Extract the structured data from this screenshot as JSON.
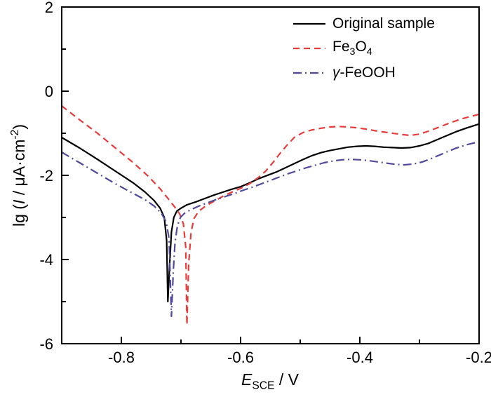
{
  "chart_data": {
    "type": "line",
    "title": "",
    "xlabel": "E_SCE / V",
    "ylabel": "lg (I / μA·cm⁻²)",
    "xlim": [
      -0.9,
      -0.2
    ],
    "ylim": [
      -6,
      2
    ],
    "x_ticks": [
      -0.8,
      -0.6,
      -0.4,
      -0.2
    ],
    "x_tick_labels": [
      "-0.8",
      "-0.6",
      "-0.4",
      "-0.2"
    ],
    "x_minor_ticks": [
      -0.9,
      -0.7,
      -0.5,
      -0.3
    ],
    "y_ticks": [
      -6,
      -4,
      -2,
      0,
      2
    ],
    "y_tick_labels": [
      "-6",
      "-4",
      "-2",
      "0",
      "2"
    ],
    "y_minor_ticks": [
      -5,
      -3,
      -1,
      1
    ],
    "grid": false,
    "legend_position": "top-right",
    "axis_color": "#000000",
    "series": [
      {
        "name": "Original sample",
        "color": "#000000",
        "dash": "solid",
        "stroke_width": 2.2,
        "x": [
          -0.9,
          -0.87,
          -0.84,
          -0.81,
          -0.78,
          -0.76,
          -0.745,
          -0.735,
          -0.728,
          -0.724,
          -0.722,
          -0.719,
          -0.716,
          -0.712,
          -0.707,
          -0.7,
          -0.69,
          -0.675,
          -0.66,
          -0.645,
          -0.63,
          -0.615,
          -0.6,
          -0.585,
          -0.57,
          -0.555,
          -0.54,
          -0.525,
          -0.51,
          -0.495,
          -0.48,
          -0.465,
          -0.45,
          -0.435,
          -0.42,
          -0.405,
          -0.39,
          -0.375,
          -0.36,
          -0.345,
          -0.33,
          -0.315,
          -0.3,
          -0.285,
          -0.27,
          -0.255,
          -0.24,
          -0.22,
          -0.2
        ],
        "y": [
          -1.1,
          -1.35,
          -1.62,
          -1.9,
          -2.18,
          -2.4,
          -2.6,
          -2.78,
          -3.0,
          -3.55,
          -5.0,
          -4.1,
          -3.35,
          -3.0,
          -2.85,
          -2.78,
          -2.7,
          -2.63,
          -2.55,
          -2.47,
          -2.4,
          -2.33,
          -2.27,
          -2.18,
          -2.08,
          -2.0,
          -1.92,
          -1.82,
          -1.72,
          -1.62,
          -1.53,
          -1.46,
          -1.41,
          -1.37,
          -1.33,
          -1.31,
          -1.3,
          -1.31,
          -1.33,
          -1.34,
          -1.35,
          -1.34,
          -1.3,
          -1.24,
          -1.15,
          -1.06,
          -0.97,
          -0.87,
          -0.78
        ]
      },
      {
        "name": "Fe₃O₄",
        "color": "#e83b3b",
        "dash": "dashed",
        "stroke_width": 2.2,
        "x": [
          -0.9,
          -0.87,
          -0.84,
          -0.81,
          -0.78,
          -0.755,
          -0.735,
          -0.72,
          -0.71,
          -0.702,
          -0.696,
          -0.692,
          -0.69,
          -0.687,
          -0.683,
          -0.678,
          -0.67,
          -0.658,
          -0.645,
          -0.63,
          -0.615,
          -0.6,
          -0.585,
          -0.57,
          -0.558,
          -0.546,
          -0.534,
          -0.522,
          -0.51,
          -0.495,
          -0.48,
          -0.465,
          -0.45,
          -0.435,
          -0.42,
          -0.405,
          -0.39,
          -0.37,
          -0.35,
          -0.33,
          -0.315,
          -0.3,
          -0.285,
          -0.27,
          -0.25,
          -0.23,
          -0.2
        ],
        "y": [
          -0.35,
          -0.68,
          -1.0,
          -1.35,
          -1.7,
          -2.02,
          -2.32,
          -2.58,
          -2.76,
          -2.92,
          -3.15,
          -3.7,
          -5.55,
          -4.1,
          -3.35,
          -3.02,
          -2.85,
          -2.72,
          -2.62,
          -2.5,
          -2.4,
          -2.31,
          -2.2,
          -2.05,
          -1.9,
          -1.7,
          -1.48,
          -1.28,
          -1.1,
          -0.98,
          -0.92,
          -0.88,
          -0.85,
          -0.84,
          -0.85,
          -0.87,
          -0.9,
          -0.95,
          -0.99,
          -1.03,
          -1.05,
          -1.02,
          -0.95,
          -0.87,
          -0.76,
          -0.66,
          -0.55
        ]
      },
      {
        "name": "γ-FeOOH",
        "color": "#504a9c",
        "dash": "dashdot",
        "stroke_width": 2.2,
        "x": [
          -0.9,
          -0.87,
          -0.84,
          -0.81,
          -0.78,
          -0.76,
          -0.745,
          -0.733,
          -0.725,
          -0.72,
          -0.716,
          -0.713,
          -0.71,
          -0.706,
          -0.701,
          -0.694,
          -0.684,
          -0.67,
          -0.655,
          -0.64,
          -0.625,
          -0.61,
          -0.595,
          -0.58,
          -0.565,
          -0.55,
          -0.535,
          -0.52,
          -0.505,
          -0.49,
          -0.475,
          -0.46,
          -0.445,
          -0.43,
          -0.415,
          -0.4,
          -0.385,
          -0.37,
          -0.355,
          -0.34,
          -0.325,
          -0.31,
          -0.295,
          -0.28,
          -0.26,
          -0.24,
          -0.22,
          -0.2
        ],
        "y": [
          -1.45,
          -1.7,
          -1.95,
          -2.2,
          -2.43,
          -2.58,
          -2.73,
          -2.9,
          -3.1,
          -3.5,
          -5.35,
          -4.3,
          -3.6,
          -3.2,
          -3.0,
          -2.9,
          -2.82,
          -2.73,
          -2.65,
          -2.57,
          -2.5,
          -2.43,
          -2.35,
          -2.28,
          -2.2,
          -2.12,
          -2.04,
          -1.96,
          -1.89,
          -1.82,
          -1.76,
          -1.7,
          -1.66,
          -1.63,
          -1.62,
          -1.63,
          -1.65,
          -1.68,
          -1.71,
          -1.74,
          -1.75,
          -1.73,
          -1.68,
          -1.6,
          -1.48,
          -1.36,
          -1.27,
          -1.2
        ]
      }
    ]
  },
  "labels": {
    "ylabel_parts": {
      "p1": "lg (",
      "p2": "I",
      "p3": " / μA·cm",
      "p4": "-2",
      "p5": ")"
    },
    "xlabel_parts": {
      "p1": "E",
      "p2": "SCE",
      "p3": " / V"
    }
  },
  "legend": {
    "items": [
      {
        "label": "Original sample"
      },
      {
        "pre": "Fe",
        "sub1": "3",
        "mid": "O",
        "sub2": "4"
      },
      {
        "italic": "γ",
        "rest": "-FeOOH"
      }
    ]
  }
}
